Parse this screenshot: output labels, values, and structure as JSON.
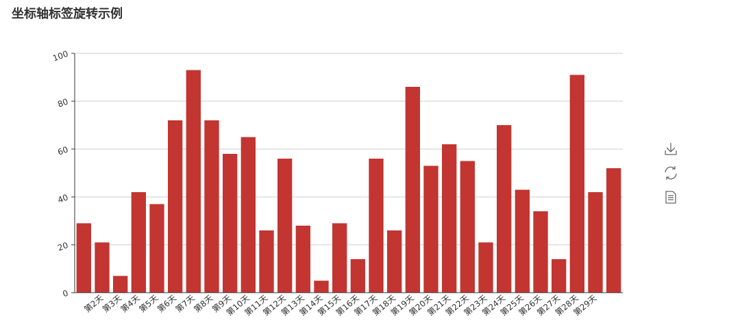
{
  "chart_data": {
    "type": "bar",
    "title": "坐标轴标签旋转示例",
    "categories": [
      null,
      "第2天",
      "第3天",
      "第4天",
      "第5天",
      "第6天",
      "第7天",
      "第8天",
      "第9天",
      "第10天",
      "第11天",
      "第12天",
      "第13天",
      "第14天",
      "第15天",
      "第16天",
      "第17天",
      "第18天",
      "第19天",
      "第20天",
      "第21天",
      "第22天",
      "第23天",
      "第24天",
      "第25天",
      "第26天",
      "第27天",
      "第28天",
      "第29天",
      null
    ],
    "values": [
      29,
      21,
      7,
      42,
      37,
      72,
      93,
      72,
      58,
      65,
      26,
      56,
      28,
      5,
      29,
      14,
      56,
      26,
      86,
      53,
      62,
      55,
      21,
      70,
      43,
      34,
      14,
      91,
      42,
      52
    ],
    "color": "#c23531",
    "ylim": [
      0,
      100
    ],
    "yticks": [
      0,
      20,
      40,
      60,
      80,
      100
    ],
    "grid": true
  }
}
